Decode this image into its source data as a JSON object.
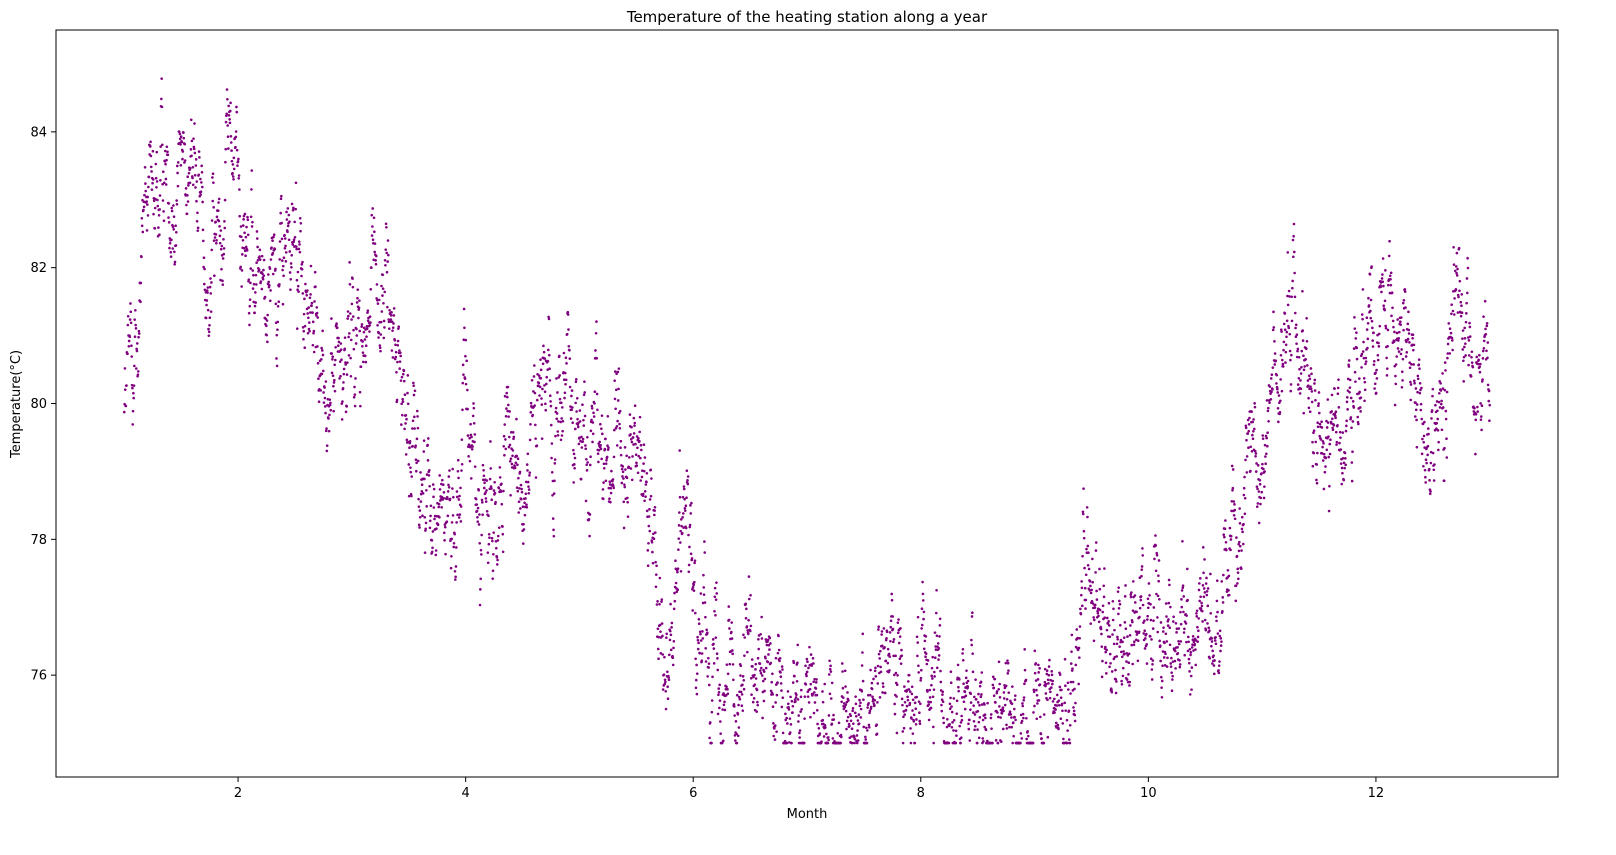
{
  "chart_data": {
    "type": "scatter",
    "title": "Temperature of the heating station along a year",
    "xlabel": "Month",
    "ylabel": "Temperature(°C)",
    "xlim": [
      0.4,
      13.6
    ],
    "ylim": [
      74.5,
      85.5
    ],
    "xticks": [
      2,
      4,
      6,
      8,
      10,
      12
    ],
    "yticks": [
      76,
      78,
      80,
      82,
      84
    ],
    "grid": false,
    "legend": "none",
    "marker_color": "#800080",
    "series": [
      {
        "x_range": [
          1.0,
          13.0
        ],
        "y_min": 75,
        "y_max": 85,
        "profile": [
          [
            1.0,
            80.0
          ],
          [
            1.25,
            82.5
          ],
          [
            1.5,
            83.8
          ],
          [
            1.75,
            82.2
          ],
          [
            2.0,
            82.8
          ],
          [
            2.25,
            82.3
          ],
          [
            2.5,
            82.2
          ],
          [
            2.75,
            80.0
          ],
          [
            3.0,
            80.3
          ],
          [
            3.25,
            81.5
          ],
          [
            3.5,
            80.0
          ],
          [
            3.75,
            78.8
          ],
          [
            4.0,
            79.0
          ],
          [
            4.25,
            78.0
          ],
          [
            4.5,
            79.2
          ],
          [
            4.75,
            80.6
          ],
          [
            5.0,
            79.8
          ],
          [
            5.25,
            79.3
          ],
          [
            5.5,
            79.2
          ],
          [
            5.75,
            77.0
          ],
          [
            6.0,
            76.8
          ],
          [
            6.25,
            76.3
          ],
          [
            6.5,
            75.8
          ],
          [
            6.75,
            75.4
          ],
          [
            7.0,
            75.5
          ],
          [
            7.25,
            75.5
          ],
          [
            7.5,
            75.6
          ],
          [
            7.75,
            75.5
          ],
          [
            8.0,
            76.0
          ],
          [
            8.25,
            75.8
          ],
          [
            8.5,
            75.5
          ],
          [
            8.75,
            75.5
          ],
          [
            9.0,
            75.3
          ],
          [
            9.25,
            75.6
          ],
          [
            9.5,
            77.5
          ],
          [
            9.75,
            76.5
          ],
          [
            10.0,
            77.0
          ],
          [
            10.25,
            76.3
          ],
          [
            10.5,
            76.8
          ],
          [
            10.75,
            78.5
          ],
          [
            11.0,
            80.0
          ],
          [
            11.25,
            81.5
          ],
          [
            11.5,
            79.5
          ],
          [
            11.75,
            80.0
          ],
          [
            12.0,
            81.5
          ],
          [
            12.25,
            80.8
          ],
          [
            12.5,
            79.0
          ],
          [
            12.75,
            81.5
          ],
          [
            13.0,
            79.5
          ]
        ]
      }
    ]
  }
}
